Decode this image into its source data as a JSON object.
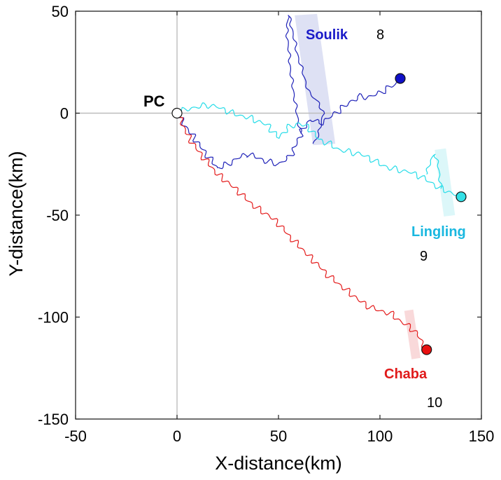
{
  "chart_data": {
    "type": "line",
    "xlabel": "X-distance(km)",
    "ylabel": "Y-distance(km)",
    "xlim": [
      -50,
      150
    ],
    "ylim": [
      -150,
      50
    ],
    "xticks": [
      "-50",
      "0",
      "50",
      "100",
      "150"
    ],
    "yticks": [
      "50",
      "0",
      "-50",
      "-100",
      "-150"
    ],
    "xtick_values": [
      -50,
      0,
      50,
      100,
      150
    ],
    "ytick_values": [
      50,
      0,
      -50,
      -100,
      -150
    ],
    "grid": false,
    "reference_lines": {
      "x": 0,
      "y": 0,
      "color": "#bdbdbd"
    },
    "origin": {
      "label": "PC",
      "x": 0,
      "y": 0
    },
    "series": [
      {
        "name": "Soulik",
        "number": "8",
        "color": "#1f22b8",
        "label_color": "#1a1ac8",
        "marker_color": "#1010c8",
        "end": [
          110,
          17
        ],
        "path": [
          [
            0,
            0
          ],
          [
            3,
            -5
          ],
          [
            7,
            -10
          ],
          [
            12,
            -17
          ],
          [
            16,
            -22
          ],
          [
            20,
            -27
          ],
          [
            25,
            -25
          ],
          [
            30,
            -22
          ],
          [
            35,
            -20
          ],
          [
            40,
            -22
          ],
          [
            45,
            -24
          ],
          [
            50,
            -25
          ],
          [
            55,
            -22
          ],
          [
            58,
            -17
          ],
          [
            61,
            -10
          ],
          [
            64,
            -5
          ],
          [
            66,
            -3
          ],
          [
            70,
            -5
          ],
          [
            74,
            -3
          ],
          [
            78,
            0
          ],
          [
            82,
            3
          ],
          [
            86,
            6
          ],
          [
            90,
            8
          ],
          [
            95,
            8
          ],
          [
            100,
            10
          ],
          [
            105,
            13
          ],
          [
            108,
            14
          ],
          [
            110,
            17
          ]
        ],
        "branch": [
          [
            61,
            -10
          ],
          [
            59,
            0
          ],
          [
            56,
            20
          ],
          [
            54,
            42
          ],
          [
            55,
            48
          ],
          [
            57,
            40
          ],
          [
            59,
            30
          ],
          [
            62,
            20
          ],
          [
            65,
            10
          ],
          [
            70,
            5
          ],
          [
            72,
            0
          ],
          [
            70,
            -10
          ],
          [
            67,
            -15
          ]
        ],
        "shade": {
          "x_range": [
            58,
            78
          ],
          "y_range": [
            -15,
            48
          ],
          "color": "#d8dcf2"
        }
      },
      {
        "name": "Lingling",
        "number": "9",
        "color": "#26dce8",
        "label_color": "#1ab8e0",
        "marker_color": "#33e0e6",
        "end": [
          140,
          -41
        ],
        "path": [
          [
            0,
            0
          ],
          [
            5,
            2
          ],
          [
            10,
            3
          ],
          [
            15,
            4
          ],
          [
            20,
            3
          ],
          [
            25,
            1
          ],
          [
            30,
            -1
          ],
          [
            35,
            -2
          ],
          [
            40,
            -4
          ],
          [
            45,
            -6
          ],
          [
            48,
            -10
          ],
          [
            50,
            -12
          ],
          [
            52,
            -10
          ],
          [
            55,
            -7
          ],
          [
            60,
            -5
          ],
          [
            65,
            -7
          ],
          [
            70,
            -13
          ],
          [
            75,
            -15
          ],
          [
            80,
            -18
          ],
          [
            85,
            -19
          ],
          [
            90,
            -20
          ],
          [
            95,
            -22
          ],
          [
            100,
            -25
          ],
          [
            105,
            -27
          ],
          [
            110,
            -28
          ],
          [
            115,
            -29
          ],
          [
            120,
            -31
          ],
          [
            125,
            -34
          ],
          [
            130,
            -37
          ],
          [
            135,
            -39
          ],
          [
            140,
            -41
          ]
        ],
        "branch": [
          [
            130,
            -37
          ],
          [
            129,
            -27
          ],
          [
            127,
            -20
          ],
          [
            125,
            -23
          ],
          [
            123,
            -30
          ]
        ],
        "shade": {
          "x_range": [
            127,
            137
          ],
          "y_range": [
            -50,
            -18
          ],
          "color": "#d6f6f8"
        }
      },
      {
        "name": "Chaba",
        "number": "10",
        "color": "#e41c1c",
        "label_color": "#e01a1a",
        "marker_color": "#e81010",
        "end": [
          123,
          -116
        ],
        "path": [
          [
            0,
            0
          ],
          [
            3,
            -6
          ],
          [
            6,
            -12
          ],
          [
            10,
            -18
          ],
          [
            15,
            -24
          ],
          [
            20,
            -30
          ],
          [
            25,
            -34
          ],
          [
            30,
            -38
          ],
          [
            35,
            -43
          ],
          [
            40,
            -47
          ],
          [
            45,
            -50
          ],
          [
            50,
            -54
          ],
          [
            55,
            -60
          ],
          [
            60,
            -65
          ],
          [
            65,
            -70
          ],
          [
            70,
            -75
          ],
          [
            75,
            -80
          ],
          [
            80,
            -84
          ],
          [
            85,
            -88
          ],
          [
            90,
            -92
          ],
          [
            95,
            -95
          ],
          [
            100,
            -97
          ],
          [
            105,
            -98
          ],
          [
            110,
            -102
          ],
          [
            115,
            -105
          ],
          [
            118,
            -108
          ],
          [
            120,
            -111
          ],
          [
            123,
            -116
          ]
        ],
        "branch": [],
        "shade": {
          "x_range": [
            112,
            120
          ],
          "y_range": [
            -120,
            -97
          ],
          "color": "#f8d2d4"
        }
      }
    ]
  }
}
